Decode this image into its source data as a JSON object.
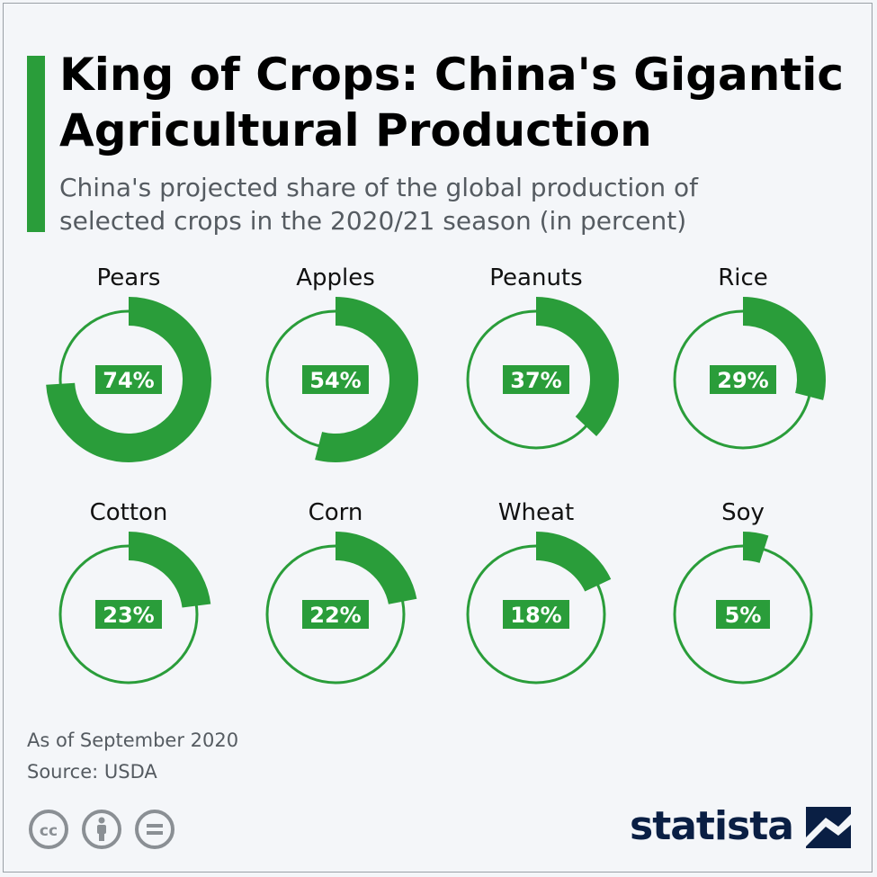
{
  "header": {
    "title": "King of Crops: China's Gigantic Agricultural Production",
    "subtitle": "China's projected share of the global production of selected crops in the 2020/21 season (in percent)"
  },
  "chart_data": {
    "type": "donut-grid",
    "title": "King of Crops: China's Gigantic Agricultural Production",
    "subtitle": "China's projected share of the global production of selected crops in the 2020/21 season (in percent)",
    "unit": "%",
    "categories": [
      "Pears",
      "Apples",
      "Peanuts",
      "Rice",
      "Cotton",
      "Corn",
      "Wheat",
      "Soy"
    ],
    "values": [
      74,
      54,
      37,
      29,
      23,
      22,
      18,
      5
    ],
    "labels": [
      "74%",
      "54%",
      "37%",
      "29%",
      "23%",
      "22%",
      "18%",
      "5%"
    ]
  },
  "footer": {
    "note": "As of September 2020",
    "source": "Source: USDA",
    "brand": "statista",
    "license_icons": [
      "creative-commons-icon",
      "attribution-icon",
      "no-derivatives-icon"
    ]
  },
  "colors": {
    "accent": "#2a9d3a",
    "label_text": "#ffffff",
    "title_text": "#000000",
    "muted_text": "#555b61",
    "brand": "#0a1f44"
  }
}
